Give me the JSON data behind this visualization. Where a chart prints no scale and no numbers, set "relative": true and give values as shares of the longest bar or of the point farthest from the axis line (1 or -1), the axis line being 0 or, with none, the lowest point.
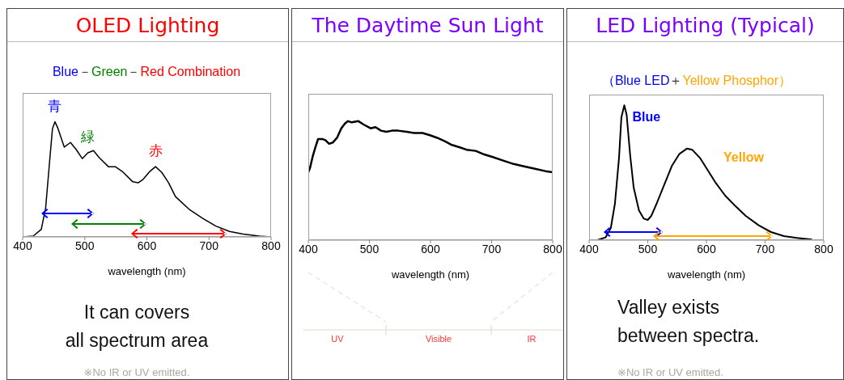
{
  "chart_data": [
    {
      "type": "line",
      "title": "OLED Lighting",
      "subtitle": "Blue－Green－Red Combination",
      "xlabel": "wavelength (nm)",
      "relative": true,
      "xlim": [
        400,
        800
      ],
      "xticks": [
        400,
        500,
        600,
        700,
        800
      ],
      "x": [
        400,
        417,
        430,
        437,
        443,
        448,
        452,
        457,
        467,
        477,
        486,
        496,
        505,
        514,
        523,
        538,
        549,
        560,
        577,
        586,
        594,
        605,
        614,
        624,
        635,
        646,
        668,
        690,
        711,
        733,
        755,
        781,
        800
      ],
      "series": [
        {
          "color": "#000000",
          "values": [
            0,
            0.007,
            0.066,
            0.25,
            0.63,
            0.94,
            1,
            0.94,
            0.78,
            0.82,
            0.76,
            0.68,
            0.73,
            0.75,
            0.69,
            0.61,
            0.61,
            0.57,
            0.48,
            0.47,
            0.5,
            0.57,
            0.61,
            0.56,
            0.47,
            0.35,
            0.24,
            0.16,
            0.094,
            0.047,
            0.024,
            0.007,
            0
          ]
        }
      ],
      "annotations": [
        {
          "text": "青",
          "x": 452,
          "y": 1
        },
        {
          "text": "緑",
          "x": 505,
          "y": 0.73
        },
        {
          "text": "赤",
          "x": 614,
          "y": 0.61
        },
        "It can covers\nall spectrum area",
        "※No IR or UV emitted."
      ]
    },
    {
      "type": "line",
      "title": "The Daytime Sun Light",
      "xlabel": "wavelength (nm)",
      "relative": true,
      "xlim": [
        400,
        800
      ],
      "xticks": [
        400,
        500,
        600,
        700,
        800
      ],
      "x": [
        400,
        403,
        407,
        411,
        416,
        423,
        428,
        434,
        440,
        447,
        454,
        460,
        465,
        471,
        482,
        491,
        502,
        510,
        519,
        528,
        537,
        547,
        561,
        574,
        587,
        600,
        611,
        624,
        635,
        648,
        659,
        674,
        688,
        701,
        718,
        736,
        753,
        771,
        788,
        800
      ],
      "series": [
        {
          "color": "#000000",
          "values": [
            0.57,
            0.61,
            0.7,
            0.77,
            0.85,
            0.85,
            0.84,
            0.81,
            0.82,
            0.86,
            0.94,
            0.98,
            1,
            0.99,
            1,
            0.97,
            0.94,
            0.95,
            0.92,
            0.91,
            0.92,
            0.92,
            0.91,
            0.9,
            0.9,
            0.88,
            0.86,
            0.83,
            0.8,
            0.78,
            0.76,
            0.75,
            0.72,
            0.7,
            0.67,
            0.64,
            0.62,
            0.6,
            0.58,
            0.57
          ]
        }
      ],
      "annotations": [
        "UV",
        "Visible",
        "IR"
      ]
    },
    {
      "type": "line",
      "title": "LED Lighting (Typical)",
      "subtitle": "（Blue LED＋Yellow Phosphor）",
      "xlabel": "wavelength (nm)",
      "relative": true,
      "xlim": [
        400,
        800
      ],
      "xticks": [
        400,
        500,
        600,
        700,
        800
      ],
      "x": [
        400,
        415,
        428,
        437,
        444,
        451,
        455,
        460,
        464,
        470,
        476,
        485,
        493,
        500,
        506,
        515,
        528,
        541,
        554,
        567,
        576,
        589,
        602,
        615,
        632,
        650,
        667,
        689,
        710,
        732,
        754,
        780
      ],
      "series": [
        {
          "color": "#000000",
          "values": [
            0,
            0.002,
            0.02,
            0.09,
            0.27,
            0.61,
            0.91,
            1,
            0.93,
            0.63,
            0.39,
            0.22,
            0.16,
            0.15,
            0.18,
            0.27,
            0.41,
            0.55,
            0.64,
            0.68,
            0.67,
            0.61,
            0.52,
            0.43,
            0.33,
            0.25,
            0.18,
            0.11,
            0.06,
            0.03,
            0.016,
            0.004
          ]
        }
      ],
      "annotations": [
        {
          "text": "Blue",
          "x": 460,
          "y": 1
        },
        {
          "text": "Yellow",
          "x": 567,
          "y": 0.68
        },
        "Valley exists\nbetween spectra.",
        "※No IR or UV emitted."
      ]
    }
  ]
}
